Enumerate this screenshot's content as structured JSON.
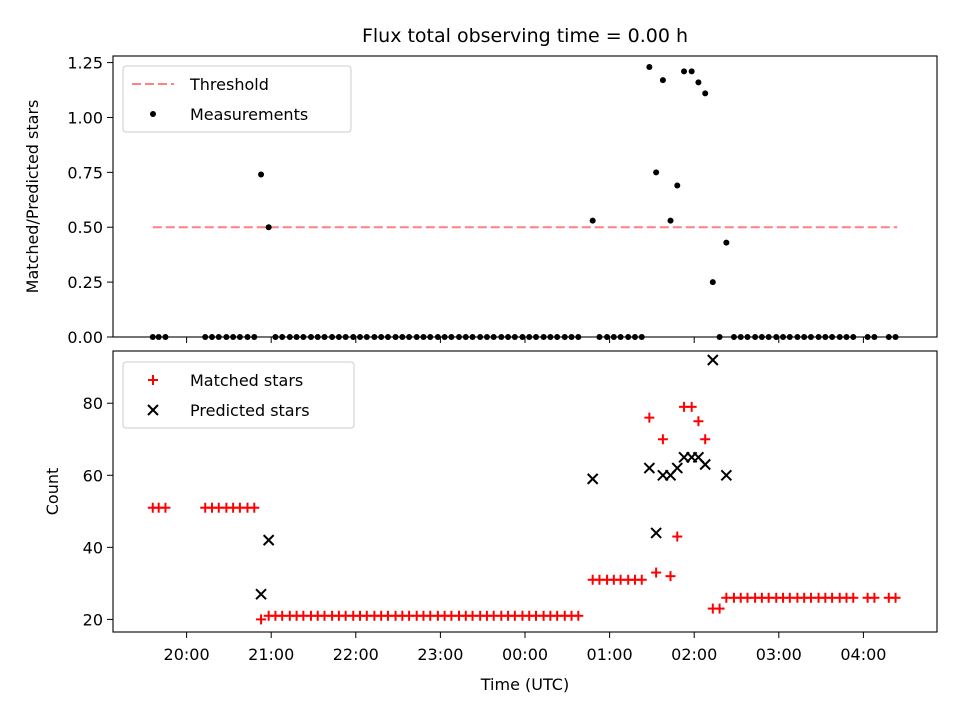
{
  "figure": {
    "title": "Flux total observing time = 0.00 h",
    "xlabel": "Time (UTC)",
    "x_ticks": [
      "20:00",
      "21:00",
      "22:00",
      "23:00",
      "00:00",
      "01:00",
      "02:00",
      "03:00",
      "04:00"
    ]
  },
  "colors": {
    "threshold": "#ff8080",
    "measurements": "#000000",
    "matched": "#ff0000",
    "predicted": "#000000"
  },
  "chart_data": [
    {
      "type": "scatter",
      "panel": "top",
      "title": "Flux total observing time = 0.00 h",
      "xlabel": "",
      "ylabel": "Matched/Predicted stars",
      "x_unit": "hours since 00:00 UTC",
      "xlim": [
        -4.87,
        4.87
      ],
      "ylim": [
        0,
        1.28
      ],
      "y_ticks": [
        "0.00",
        "0.25",
        "0.50",
        "0.75",
        "1.00",
        "1.25"
      ],
      "y_tick_values": [
        0,
        0.25,
        0.5,
        0.75,
        1.0,
        1.25
      ],
      "grid": false,
      "legend_position": "top-left",
      "threshold": {
        "name": "Threshold",
        "y": 0.5,
        "x_range": [
          -4.4,
          4.4
        ],
        "style": "dashed"
      },
      "series": [
        {
          "name": "Measurements",
          "points": [
            [
              -4.4,
              0
            ],
            [
              -4.33,
              0
            ],
            [
              -4.25,
              0
            ],
            [
              -3.78,
              0
            ],
            [
              -3.7,
              0
            ],
            [
              -3.62,
              0
            ],
            [
              -3.53,
              0
            ],
            [
              -3.45,
              0
            ],
            [
              -3.37,
              0
            ],
            [
              -3.28,
              0
            ],
            [
              -3.2,
              0
            ],
            [
              -3.12,
              0.74
            ],
            [
              -3.03,
              0.5
            ],
            [
              -2.95,
              0
            ],
            [
              -2.87,
              0
            ],
            [
              -2.78,
              0
            ],
            [
              -2.7,
              0
            ],
            [
              -2.62,
              0
            ],
            [
              -2.53,
              0
            ],
            [
              -2.45,
              0
            ],
            [
              -2.37,
              0
            ],
            [
              -2.28,
              0
            ],
            [
              -2.2,
              0
            ],
            [
              -2.12,
              0
            ],
            [
              -2.03,
              0
            ],
            [
              -1.95,
              0
            ],
            [
              -1.87,
              0
            ],
            [
              -1.78,
              0
            ],
            [
              -1.7,
              0
            ],
            [
              -1.62,
              0
            ],
            [
              -1.53,
              0
            ],
            [
              -1.45,
              0
            ],
            [
              -1.37,
              0
            ],
            [
              -1.28,
              0
            ],
            [
              -1.2,
              0
            ],
            [
              -1.12,
              0
            ],
            [
              -1.03,
              0
            ],
            [
              -0.95,
              0
            ],
            [
              -0.87,
              0
            ],
            [
              -0.78,
              0
            ],
            [
              -0.7,
              0
            ],
            [
              -0.62,
              0
            ],
            [
              -0.53,
              0
            ],
            [
              -0.45,
              0
            ],
            [
              -0.37,
              0
            ],
            [
              -0.28,
              0
            ],
            [
              -0.2,
              0
            ],
            [
              -0.12,
              0
            ],
            [
              -0.03,
              0
            ],
            [
              0.05,
              0
            ],
            [
              0.13,
              0
            ],
            [
              0.22,
              0
            ],
            [
              0.3,
              0
            ],
            [
              0.38,
              0
            ],
            [
              0.47,
              0
            ],
            [
              0.55,
              0
            ],
            [
              0.63,
              0
            ],
            [
              0.8,
              0.53
            ],
            [
              0.88,
              0
            ],
            [
              0.97,
              0
            ],
            [
              1.05,
              0
            ],
            [
              1.13,
              0
            ],
            [
              1.22,
              0
            ],
            [
              1.3,
              0
            ],
            [
              1.38,
              0
            ],
            [
              1.47,
              1.23
            ],
            [
              1.55,
              0.75
            ],
            [
              1.63,
              1.17
            ],
            [
              1.72,
              0.53
            ],
            [
              1.8,
              0.69
            ],
            [
              1.88,
              1.21
            ],
            [
              1.97,
              1.21
            ],
            [
              2.05,
              1.16
            ],
            [
              2.13,
              1.11
            ],
            [
              2.22,
              0.25
            ],
            [
              2.3,
              0
            ],
            [
              2.38,
              0.43
            ],
            [
              2.47,
              0
            ],
            [
              2.55,
              0
            ],
            [
              2.63,
              0
            ],
            [
              2.72,
              0
            ],
            [
              2.8,
              0
            ],
            [
              2.88,
              0
            ],
            [
              2.97,
              0
            ],
            [
              3.05,
              0
            ],
            [
              3.13,
              0
            ],
            [
              3.22,
              0
            ],
            [
              3.3,
              0
            ],
            [
              3.38,
              0
            ],
            [
              3.47,
              0
            ],
            [
              3.55,
              0
            ],
            [
              3.63,
              0
            ],
            [
              3.72,
              0
            ],
            [
              3.8,
              0
            ],
            [
              3.88,
              0
            ],
            [
              4.05,
              0
            ],
            [
              4.13,
              0
            ],
            [
              4.3,
              0
            ],
            [
              4.38,
              0
            ]
          ]
        }
      ]
    },
    {
      "type": "scatter",
      "panel": "bottom",
      "title": "",
      "xlabel": "Time (UTC)",
      "ylabel": "Count",
      "x_unit": "hours since 00:00 UTC",
      "xlim": [
        -4.87,
        4.87
      ],
      "ylim": [
        16.5,
        94.5
      ],
      "y_ticks": [
        "20",
        "40",
        "60",
        "80"
      ],
      "y_tick_values": [
        20,
        40,
        60,
        80
      ],
      "grid": false,
      "legend_position": "top-left",
      "series": [
        {
          "name": "Matched stars",
          "marker": "+",
          "points": [
            [
              -4.4,
              51
            ],
            [
              -4.33,
              51
            ],
            [
              -4.25,
              51
            ],
            [
              -3.78,
              51
            ],
            [
              -3.7,
              51
            ],
            [
              -3.62,
              51
            ],
            [
              -3.53,
              51
            ],
            [
              -3.45,
              51
            ],
            [
              -3.37,
              51
            ],
            [
              -3.28,
              51
            ],
            [
              -3.2,
              51
            ],
            [
              -3.12,
              20
            ],
            [
              -3.03,
              21
            ],
            [
              -2.95,
              21
            ],
            [
              -2.87,
              21
            ],
            [
              -2.78,
              21
            ],
            [
              -2.7,
              21
            ],
            [
              -2.62,
              21
            ],
            [
              -2.53,
              21
            ],
            [
              -2.45,
              21
            ],
            [
              -2.37,
              21
            ],
            [
              -2.28,
              21
            ],
            [
              -2.2,
              21
            ],
            [
              -2.12,
              21
            ],
            [
              -2.03,
              21
            ],
            [
              -1.95,
              21
            ],
            [
              -1.87,
              21
            ],
            [
              -1.78,
              21
            ],
            [
              -1.7,
              21
            ],
            [
              -1.62,
              21
            ],
            [
              -1.53,
              21
            ],
            [
              -1.45,
              21
            ],
            [
              -1.37,
              21
            ],
            [
              -1.28,
              21
            ],
            [
              -1.2,
              21
            ],
            [
              -1.12,
              21
            ],
            [
              -1.03,
              21
            ],
            [
              -0.95,
              21
            ],
            [
              -0.87,
              21
            ],
            [
              -0.78,
              21
            ],
            [
              -0.7,
              21
            ],
            [
              -0.62,
              21
            ],
            [
              -0.53,
              21
            ],
            [
              -0.45,
              21
            ],
            [
              -0.37,
              21
            ],
            [
              -0.28,
              21
            ],
            [
              -0.2,
              21
            ],
            [
              -0.12,
              21
            ],
            [
              -0.03,
              21
            ],
            [
              0.05,
              21
            ],
            [
              0.13,
              21
            ],
            [
              0.22,
              21
            ],
            [
              0.3,
              21
            ],
            [
              0.38,
              21
            ],
            [
              0.47,
              21
            ],
            [
              0.55,
              21
            ],
            [
              0.63,
              21
            ],
            [
              0.8,
              31
            ],
            [
              0.88,
              31
            ],
            [
              0.97,
              31
            ],
            [
              1.05,
              31
            ],
            [
              1.13,
              31
            ],
            [
              1.22,
              31
            ],
            [
              1.3,
              31
            ],
            [
              1.38,
              31
            ],
            [
              1.47,
              76
            ],
            [
              1.55,
              33
            ],
            [
              1.63,
              70
            ],
            [
              1.72,
              32
            ],
            [
              1.8,
              43
            ],
            [
              1.88,
              79
            ],
            [
              1.97,
              79
            ],
            [
              2.05,
              75
            ],
            [
              2.13,
              70
            ],
            [
              2.22,
              23
            ],
            [
              2.3,
              23
            ],
            [
              2.38,
              26
            ],
            [
              2.47,
              26
            ],
            [
              2.55,
              26
            ],
            [
              2.63,
              26
            ],
            [
              2.72,
              26
            ],
            [
              2.8,
              26
            ],
            [
              2.88,
              26
            ],
            [
              2.97,
              26
            ],
            [
              3.05,
              26
            ],
            [
              3.13,
              26
            ],
            [
              3.22,
              26
            ],
            [
              3.3,
              26
            ],
            [
              3.38,
              26
            ],
            [
              3.47,
              26
            ],
            [
              3.55,
              26
            ],
            [
              3.63,
              26
            ],
            [
              3.72,
              26
            ],
            [
              3.8,
              26
            ],
            [
              3.88,
              26
            ],
            [
              4.05,
              26
            ],
            [
              4.13,
              26
            ],
            [
              4.3,
              26
            ],
            [
              4.38,
              26
            ]
          ]
        },
        {
          "name": "Predicted stars",
          "marker": "x",
          "points": [
            [
              -3.12,
              27
            ],
            [
              -3.03,
              42
            ],
            [
              0.8,
              59
            ],
            [
              1.47,
              62
            ],
            [
              1.55,
              44
            ],
            [
              1.63,
              60
            ],
            [
              1.72,
              60
            ],
            [
              1.8,
              62
            ],
            [
              1.88,
              65
            ],
            [
              1.97,
              65
            ],
            [
              2.05,
              65
            ],
            [
              2.13,
              63
            ],
            [
              2.22,
              92
            ],
            [
              2.38,
              60
            ]
          ]
        }
      ]
    }
  ]
}
